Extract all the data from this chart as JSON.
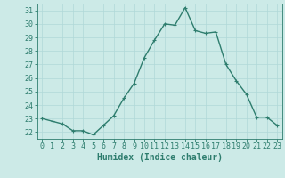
{
  "x": [
    0,
    1,
    2,
    3,
    4,
    5,
    6,
    7,
    8,
    9,
    10,
    11,
    12,
    13,
    14,
    15,
    16,
    17,
    18,
    19,
    20,
    21,
    22,
    23
  ],
  "y": [
    23.0,
    22.8,
    22.6,
    22.1,
    22.1,
    21.8,
    22.5,
    23.2,
    24.5,
    25.6,
    27.5,
    28.8,
    30.0,
    29.9,
    31.2,
    29.5,
    29.3,
    29.4,
    27.0,
    25.8,
    24.8,
    23.1,
    23.1,
    22.5
  ],
  "line_color": "#2e7d6e",
  "marker": "+",
  "marker_size": 3,
  "bg_color": "#cceae7",
  "grid_color": "#b0d8d8",
  "xlabel": "Humidex (Indice chaleur)",
  "xlim": [
    -0.5,
    23.5
  ],
  "ylim": [
    21.5,
    31.5
  ],
  "yticks": [
    22,
    23,
    24,
    25,
    26,
    27,
    28,
    29,
    30,
    31
  ],
  "xticks": [
    0,
    1,
    2,
    3,
    4,
    5,
    6,
    7,
    8,
    9,
    10,
    11,
    12,
    13,
    14,
    15,
    16,
    17,
    18,
    19,
    20,
    21,
    22,
    23
  ],
  "xlabel_fontsize": 7,
  "tick_fontsize": 6,
  "line_width": 1.0
}
